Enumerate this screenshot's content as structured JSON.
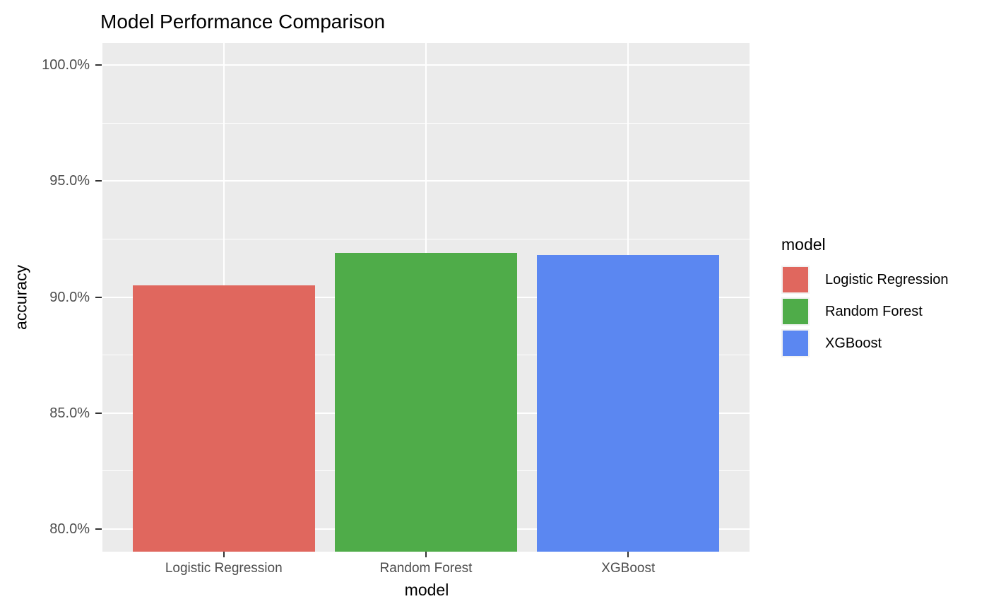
{
  "chart_data": {
    "type": "bar",
    "title": "Model Performance Comparison",
    "xlabel": "model",
    "ylabel": "accuracy",
    "categories": [
      "Logistic Regression",
      "Random Forest",
      "XGBoost"
    ],
    "values": [
      0.905,
      0.919,
      0.918
    ],
    "values_as_percent": [
      "90.5%",
      "91.9%",
      "91.8%"
    ],
    "bar_colors": [
      "#E0675E",
      "#4FAC49",
      "#5B87F1"
    ],
    "y_ticks": [
      0.8,
      0.85,
      0.9,
      0.95,
      1.0
    ],
    "y_tick_labels": [
      "80.0%",
      "85.0%",
      "90.0%",
      "95.0%",
      "100.0%"
    ],
    "ylim": [
      0.7902,
      1.0095
    ],
    "grid": true,
    "minor_grid": true,
    "legend_position": "right"
  },
  "legend": {
    "title": "model",
    "items": [
      {
        "label": "Logistic Regression",
        "color": "#E0675E"
      },
      {
        "label": "Random Forest",
        "color": "#4FAC49"
      },
      {
        "label": "XGBoost",
        "color": "#5B87F1"
      }
    ]
  },
  "colors": {
    "panel_background": "#EBEBEB",
    "gridline": "#FFFFFF",
    "axis_text": "#4D4D4D",
    "tick_mark": "#333333",
    "title_text": "#000000"
  }
}
